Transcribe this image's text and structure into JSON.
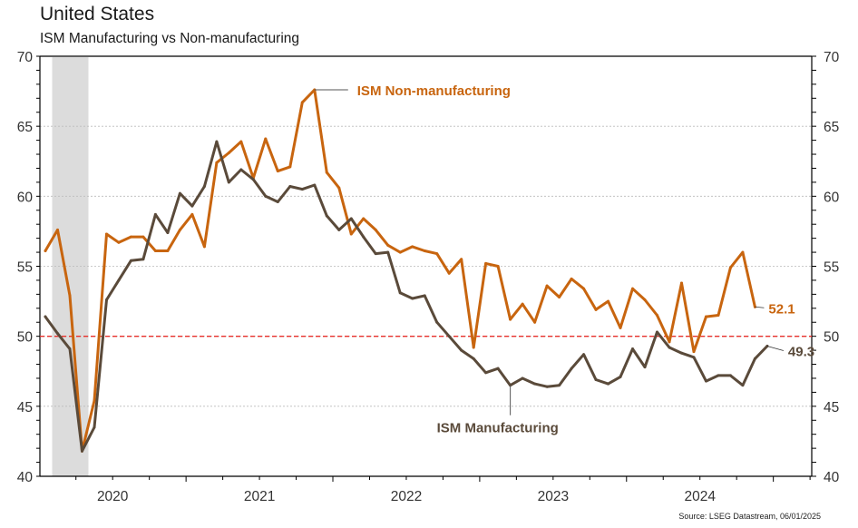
{
  "header": {
    "title": "United States",
    "subtitle": "ISM Manufacturing vs Non-manufacturing"
  },
  "source": "Source: LSEG Datastream, 06/01/2025",
  "colors": {
    "non_manufacturing": "#C8650F",
    "manufacturing": "#5A4A3A",
    "threshold": "#E8302A",
    "recession_band": "#DCDCDC",
    "gridline": "#BBBBBB"
  },
  "chart_data": {
    "type": "line",
    "title": "United States",
    "subtitle": "ISM Manufacturing vs Non-manufacturing",
    "xlabel": "",
    "ylabel": "",
    "ylim": [
      40,
      70
    ],
    "yticks": [
      40,
      45,
      50,
      55,
      60,
      65,
      70
    ],
    "ytick_labels": [
      "40",
      "45",
      "50",
      "55",
      "60",
      "65",
      "70"
    ],
    "xlim": [
      "2020-01",
      "2025-04"
    ],
    "xtick_labels": [
      "2020",
      "2021",
      "2022",
      "2023",
      "2024"
    ],
    "frequency": "monthly",
    "start": "2020-01",
    "grid": "horizontal dotted",
    "axes": "left and right",
    "threshold_line": {
      "value": 50,
      "style": "dashed red"
    },
    "shaded_regions": [
      {
        "label": "recession",
        "from": "2020-02",
        "to": "2020-04"
      }
    ],
    "series": [
      {
        "name": "ISM Non-manufacturing",
        "color": "#C8650F",
        "end_label": "52.1",
        "values": [
          56.1,
          57.6,
          52.9,
          41.8,
          45.4,
          57.3,
          56.7,
          57.1,
          57.1,
          56.1,
          56.1,
          57.6,
          58.7,
          56.4,
          62.4,
          63.1,
          63.9,
          61.3,
          64.1,
          61.8,
          62.1,
          66.7,
          67.6,
          61.7,
          60.6,
          57.3,
          58.4,
          57.6,
          56.5,
          56.0,
          56.4,
          56.1,
          55.9,
          54.5,
          55.5,
          49.2,
          55.2,
          55.0,
          51.2,
          52.3,
          51.0,
          53.6,
          52.8,
          54.1,
          53.4,
          51.9,
          52.5,
          50.6,
          53.4,
          52.6,
          51.5,
          49.6,
          53.8,
          48.9,
          51.4,
          51.5,
          54.9,
          56.0,
          52.1
        ]
      },
      {
        "name": "ISM Manufacturing",
        "color": "#5A4A3A",
        "end_label": "49.3",
        "values": [
          51.4,
          50.2,
          49.1,
          41.8,
          43.5,
          52.6,
          54.0,
          55.4,
          55.5,
          58.7,
          57.4,
          60.2,
          59.3,
          60.7,
          63.9,
          61.0,
          61.9,
          61.2,
          60.0,
          59.6,
          60.7,
          60.5,
          60.8,
          58.6,
          57.6,
          58.4,
          57.1,
          55.9,
          56.0,
          53.1,
          52.7,
          52.9,
          51.0,
          50.0,
          49.0,
          48.4,
          47.4,
          47.7,
          46.5,
          47.0,
          46.6,
          46.4,
          46.5,
          47.7,
          48.7,
          46.9,
          46.6,
          47.1,
          49.1,
          47.8,
          50.3,
          49.2,
          48.8,
          48.5,
          46.8,
          47.2,
          47.2,
          46.5,
          48.4,
          49.3
        ]
      }
    ],
    "annotations": [
      {
        "text": "ISM Non-manufacturing",
        "series": 0,
        "at_index": 22,
        "position": "right"
      },
      {
        "text": "ISM Manufacturing",
        "series": 1,
        "at_index": 38,
        "position": "below"
      }
    ]
  }
}
